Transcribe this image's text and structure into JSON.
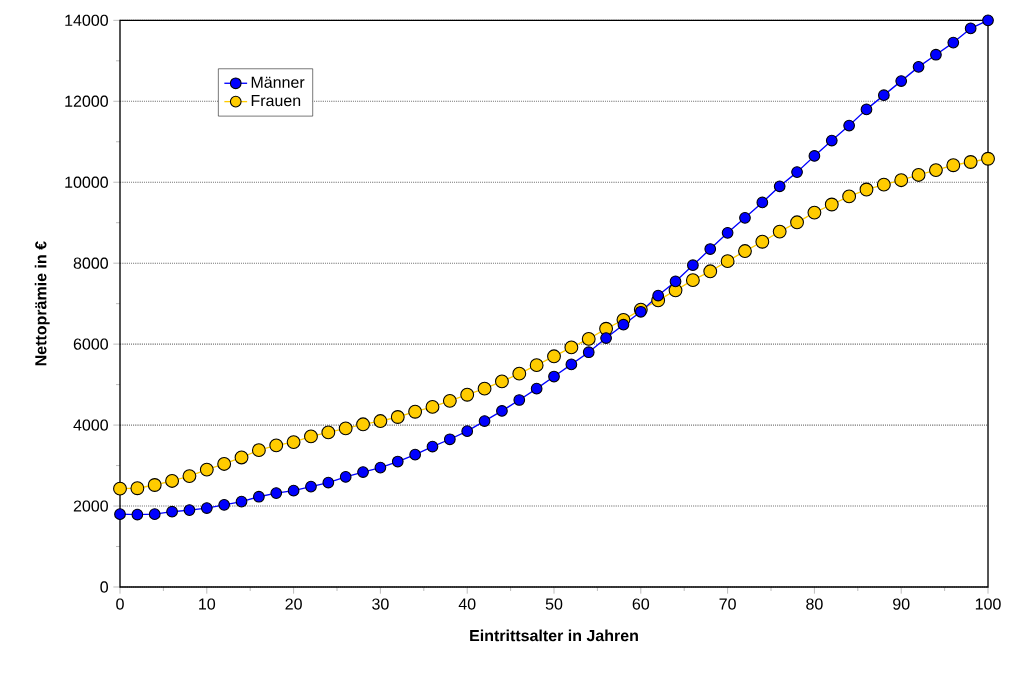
{
  "chart_data": {
    "type": "line",
    "xlabel": "Eintrittsalter in Jahren",
    "ylabel": "Nettoprämie in €",
    "x": [
      0,
      2,
      4,
      6,
      8,
      10,
      12,
      14,
      16,
      18,
      20,
      22,
      24,
      26,
      28,
      30,
      32,
      34,
      36,
      38,
      40,
      42,
      44,
      46,
      48,
      50,
      52,
      54,
      56,
      58,
      60,
      62,
      64,
      66,
      68,
      70,
      72,
      74,
      76,
      78,
      80,
      82,
      84,
      86,
      88,
      90,
      92,
      94,
      96,
      98,
      100
    ],
    "series": [
      {
        "name": "Männer",
        "color": "#0000ff",
        "values": [
          1800,
          1790,
          1800,
          1860,
          1900,
          1950,
          2030,
          2110,
          2230,
          2320,
          2380,
          2480,
          2580,
          2720,
          2840,
          2950,
          3100,
          3270,
          3470,
          3650,
          3850,
          4100,
          4350,
          4620,
          4900,
          5200,
          5500,
          5800,
          6150,
          6480,
          6800,
          7200,
          7550,
          7950,
          8350,
          8750,
          9120,
          9500,
          9900,
          10250,
          10650,
          11030,
          11400,
          11800,
          12150,
          12500,
          12850,
          13150,
          13450,
          13800,
          14000
        ]
      },
      {
        "name": "Frauen",
        "color": "#ffcc00",
        "values": [
          2430,
          2440,
          2520,
          2620,
          2740,
          2900,
          3040,
          3200,
          3380,
          3500,
          3580,
          3720,
          3820,
          3920,
          4020,
          4100,
          4200,
          4330,
          4450,
          4600,
          4750,
          4900,
          5080,
          5270,
          5480,
          5700,
          5920,
          6130,
          6380,
          6600,
          6850,
          7080,
          7330,
          7580,
          7800,
          8050,
          8300,
          8530,
          8780,
          9010,
          9250,
          9450,
          9650,
          9820,
          9940,
          10050,
          10180,
          10300,
          10420,
          10500,
          10580
        ]
      }
    ],
    "xlim": [
      0,
      100
    ],
    "xticks": [
      0,
      10,
      20,
      30,
      40,
      50,
      60,
      70,
      80,
      90,
      100
    ],
    "ylim": [
      0,
      14000
    ],
    "yticks": [
      0,
      2000,
      4000,
      6000,
      8000,
      10000,
      12000,
      14000
    ],
    "grid": "y",
    "legend": "top left",
    "marker": "circle",
    "line_style": "solid"
  }
}
